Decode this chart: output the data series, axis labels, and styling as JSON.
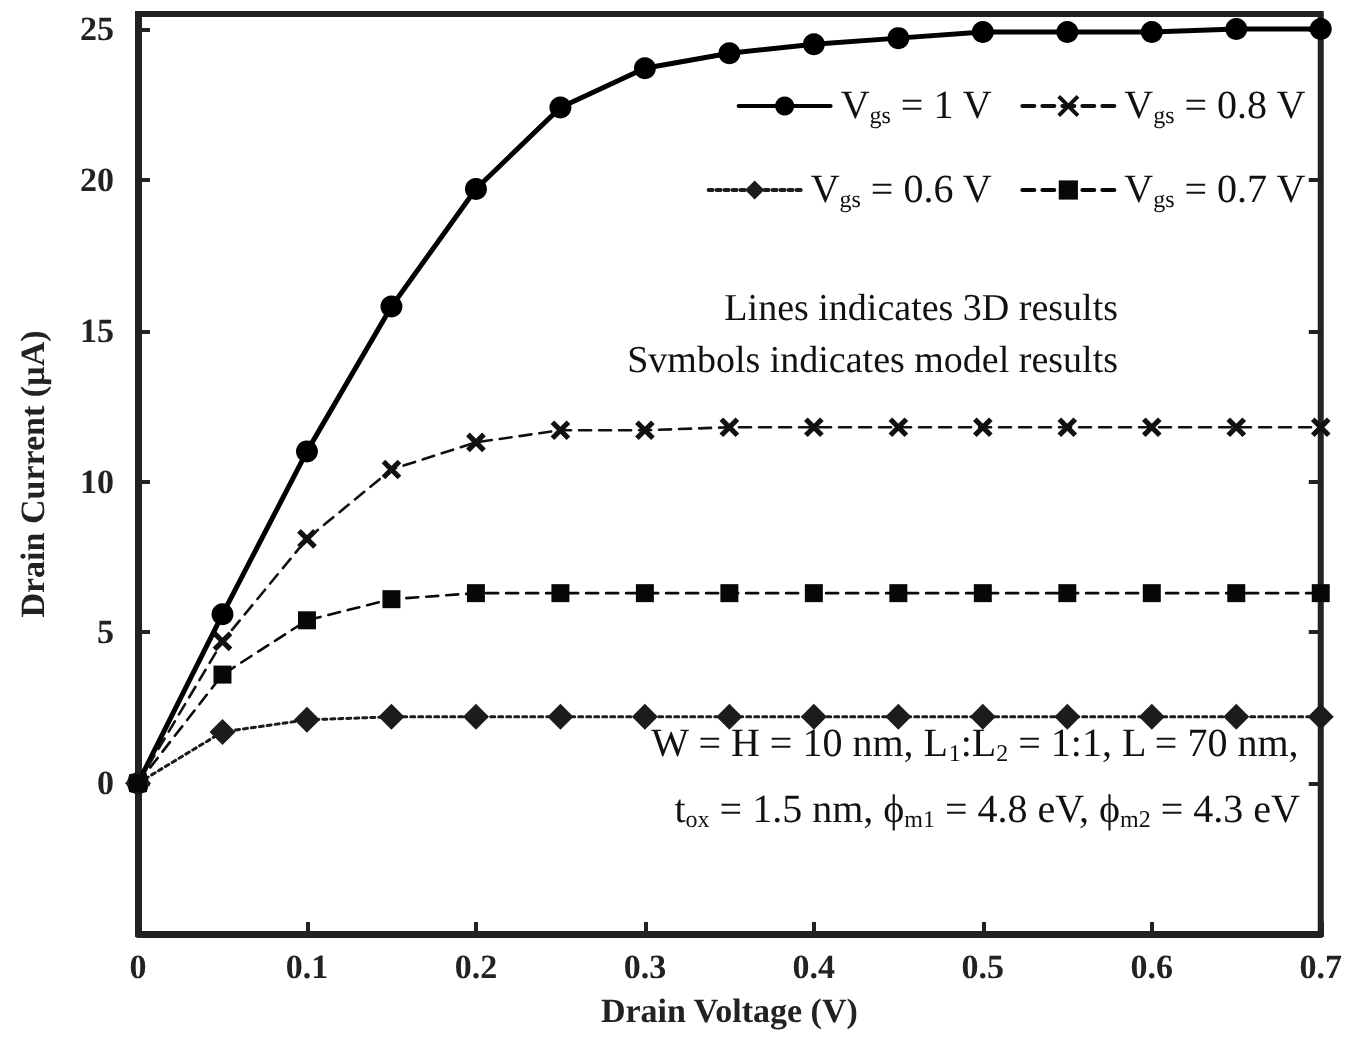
{
  "chart_data": {
    "type": "line",
    "xlabel": "Drain Voltage (V)",
    "ylabel": "Drain Current (µA)",
    "x": [
      0,
      0.05,
      0.1,
      0.15,
      0.2,
      0.25,
      0.3,
      0.35,
      0.4,
      0.45,
      0.5,
      0.55,
      0.6,
      0.65,
      0.7
    ],
    "series": [
      {
        "name": "V$_{gs}$ = 1 V",
        "color": "#000000",
        "marker": "circle",
        "line_style": "solid",
        "values": [
          0,
          5.6,
          11,
          15.8,
          19.7,
          22.4,
          23.7,
          24.2,
          24.5,
          24.7,
          24.9,
          24.9,
          24.9,
          25,
          25
        ]
      },
      {
        "name": "V$_{gs}$ = 0.8 V",
        "color": "#111111",
        "marker": "cross",
        "line_style": "dashed",
        "values": [
          0,
          4.7,
          8.1,
          10.4,
          11.3,
          11.7,
          11.7,
          11.8,
          11.8,
          11.8,
          11.8,
          11.8,
          11.8,
          11.8,
          11.8
        ]
      },
      {
        "name": "V$_{gs}$ = 0.6 V",
        "color": "#1c1c1c",
        "marker": "diamond",
        "line_style": "dotted",
        "values": [
          0,
          1.7,
          2.1,
          2.2,
          2.2,
          2.2,
          2.2,
          2.2,
          2.2,
          2.2,
          2.2,
          2.2,
          2.2,
          2.2,
          2.2
        ]
      },
      {
        "name": "V$_{gs}$ = 0.7 V",
        "color": "#080808",
        "marker": "square",
        "line_style": "dashed",
        "values": [
          0,
          3.6,
          5.4,
          6.1,
          6.3,
          6.3,
          6.3,
          6.3,
          6.3,
          6.3,
          6.3,
          6.3,
          6.3,
          6.3,
          6.3
        ]
      }
    ],
    "xlim": [
      0,
      0.7
    ],
    "xticks": [
      0,
      0.1,
      0.2,
      0.3,
      0.4,
      0.5,
      0.6,
      0.7
    ],
    "ylim": [
      -5,
      25.5
    ],
    "yticks": [
      0,
      5,
      10,
      15,
      20,
      25
    ],
    "grid": false,
    "legend": "top right",
    "annotations": [
      "Lines indicates 3D results",
      "Svmbols indicates model results",
      "W = H = 10 nm, L$_{1}$:L$_{2}$ = 1:1, L = 70 nm,",
      "t$_{ox}$ = 1.5 nm, ϕ$_{m1}$ = 4.8 eV, ϕ$_{m2}$ = 4.3 eV"
    ]
  }
}
